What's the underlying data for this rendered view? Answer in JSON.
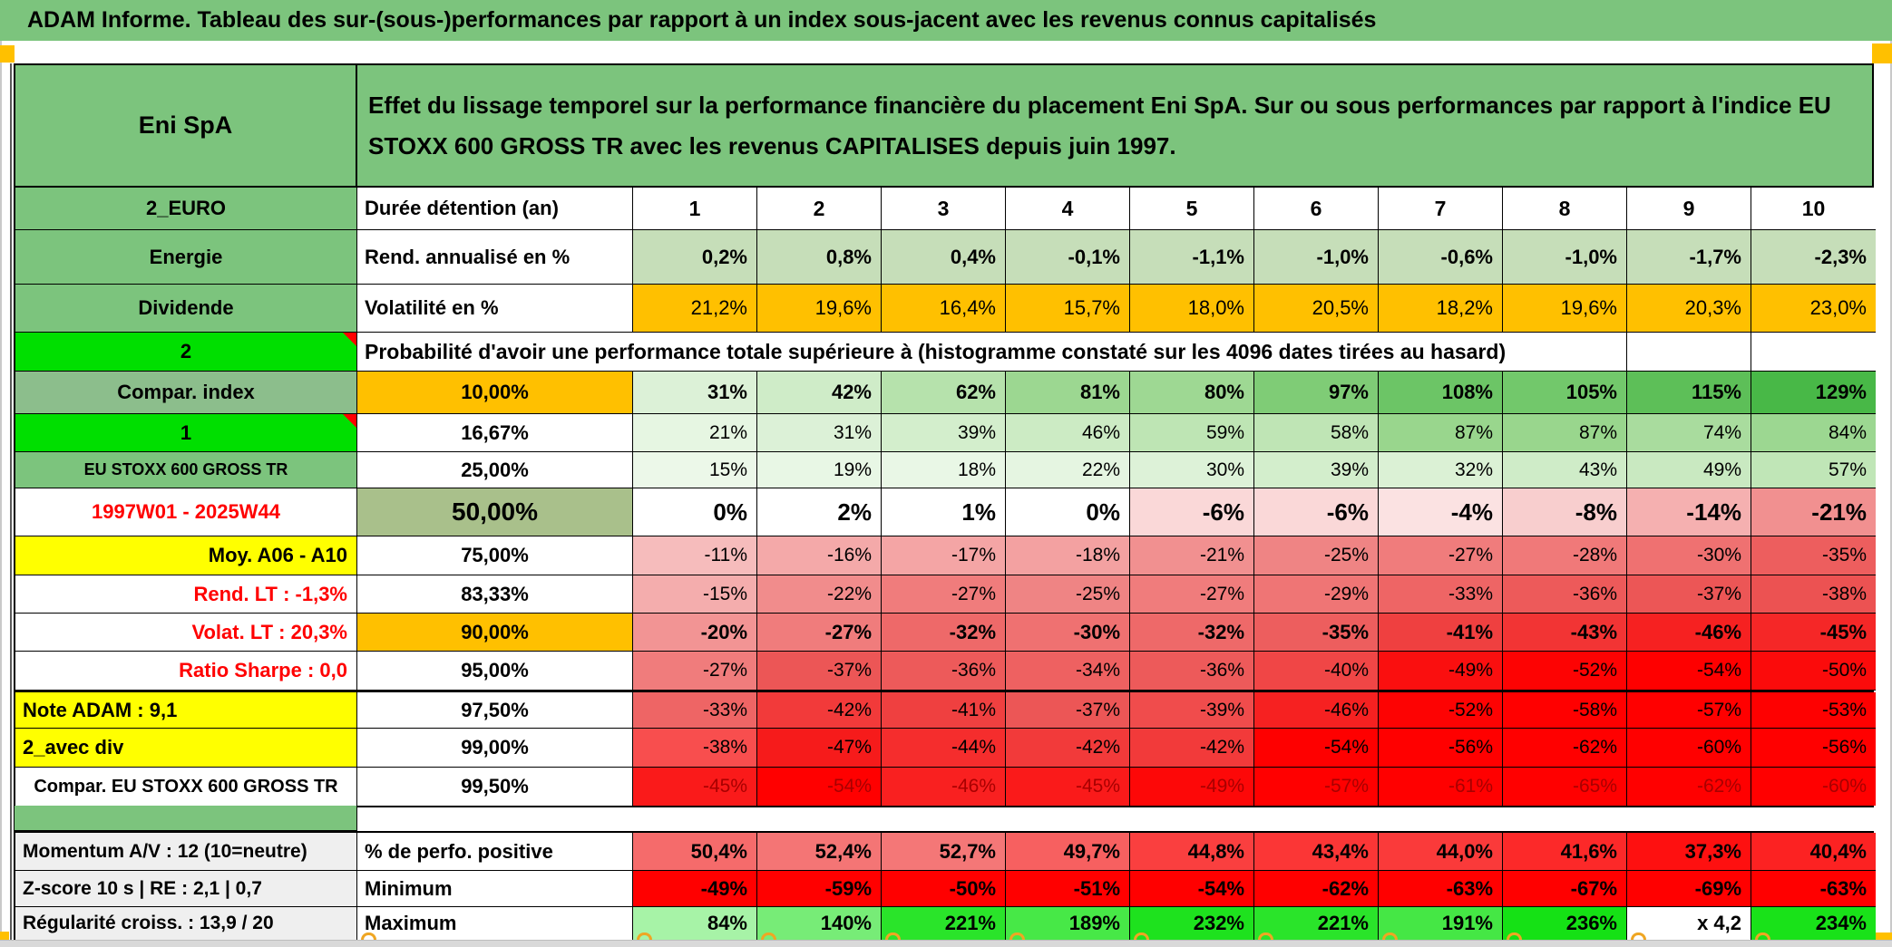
{
  "title": "ADAM Informe. Tableau des sur-(sous-)performances par rapport à un index sous-jacent avec les revenus connus capitalisés",
  "header": {
    "instrument": "Eni SpA",
    "description": "Effet du lissage temporel sur la performance financière du placement Eni SpA. Sur ou sous performances par rapport à l'indice EU STOXX 600 GROSS TR avec les revenus CAPITALISES depuis juin 1997."
  },
  "colors": {
    "sheet_green": "#7CC47D",
    "bright_green": "#00DF00",
    "muted_green": "#8CBE8C",
    "olive_green": "#A9C08B",
    "rend_green": "#C6DEB9",
    "orange": "#FFC000",
    "yellow": "#FFFF00",
    "label_gray": "#EFEFEF",
    "red_text": "#FF0000",
    "corner_marker": "#FFC000"
  },
  "table": {
    "main_rows": [
      {
        "name": "duree-detention",
        "label": {
          "text": "2_EURO",
          "bg": "#7CC47D"
        },
        "desc": {
          "text": "Durée détention (an)",
          "align": "left"
        },
        "values": [
          "1",
          "2",
          "3",
          "4",
          "5",
          "6",
          "7",
          "8",
          "9",
          "10"
        ],
        "vBold": true,
        "vAlign": "center",
        "vSize": 23,
        "vBgs": [
          "#FFFFFF",
          "#FFFFFF",
          "#FFFFFF",
          "#FFFFFF",
          "#FFFFFF",
          "#FFFFFF",
          "#FFFFFF",
          "#FFFFFF",
          "#FFFFFF",
          "#FFFFFF"
        ]
      },
      {
        "name": "rendement-annualise",
        "label": {
          "text": "Energie",
          "bg": "#7CC47D"
        },
        "desc": {
          "text": "Rend. annualisé en %",
          "align": "left"
        },
        "values": [
          "0,2%",
          "0,8%",
          "0,4%",
          "-0,1%",
          "-1,1%",
          "-1,0%",
          "-0,6%",
          "-1,0%",
          "-1,7%",
          "-2,3%"
        ],
        "vBold": true,
        "vSize": 22,
        "vBgs": [
          "#C6DEB9",
          "#C6DEB9",
          "#C6DEB9",
          "#C6DEB9",
          "#C6DEB9",
          "#C6DEB9",
          "#C6DEB9",
          "#C6DEB9",
          "#C6DEB9",
          "#C6DEB9"
        ]
      },
      {
        "name": "volatilite",
        "label": {
          "text": "Dividende",
          "bg": "#7CC47D"
        },
        "desc": {
          "text": "Volatilité en %",
          "align": "left"
        },
        "values": [
          "21,2%",
          "19,6%",
          "16,4%",
          "15,7%",
          "18,0%",
          "20,5%",
          "18,2%",
          "19,6%",
          "20,3%",
          "23,0%"
        ],
        "vBold": false,
        "vSize": 22,
        "vBgs": [
          "#FFC000",
          "#FFC000",
          "#FFC000",
          "#FFC000",
          "#FFC000",
          "#FFC000",
          "#FFC000",
          "#FFC000",
          "#FFC000",
          "#FFC000"
        ]
      },
      {
        "name": "probabilite-header",
        "label": {
          "text": "2",
          "bg": "#00DF00",
          "marker": true
        },
        "span": {
          "text": "Probabilité d'avoir une performance totale supérieure à (histogramme constaté sur les 4096 dates tirées au hasard)",
          "cols": 9
        },
        "tail": [
          "",
          ""
        ]
      },
      {
        "name": "p10",
        "label": {
          "text": "Compar. index",
          "bg": "#8CBE8C"
        },
        "desc": {
          "text": "10,00%",
          "bg": "#FFC000",
          "align": "center"
        },
        "values": [
          "31%",
          "42%",
          "62%",
          "81%",
          "80%",
          "97%",
          "108%",
          "105%",
          "115%",
          "129%"
        ],
        "vBold": true,
        "vSize": 22,
        "vBgs": [
          "#DCF1D7",
          "#CFECC8",
          "#B6E2AC",
          "#9CD791",
          "#9ED893",
          "#7FCC76",
          "#6CC566",
          "#72C86B",
          "#5DBF58",
          "#48B847"
        ]
      },
      {
        "name": "p1667",
        "label": {
          "text": "1",
          "bg": "#00DF00",
          "marker": true
        },
        "desc": {
          "text": "16,67%",
          "align": "center"
        },
        "values": [
          "21%",
          "31%",
          "39%",
          "46%",
          "59%",
          "58%",
          "87%",
          "87%",
          "74%",
          "84%"
        ],
        "vBold": false,
        "vBgs": [
          "#E6F6E2",
          "#DCF1D7",
          "#D3EECC",
          "#CCEBC4",
          "#BEE5B4",
          "#BFE5B5",
          "#99D68D",
          "#99D68D",
          "#A9DC9E",
          "#9CD791"
        ]
      },
      {
        "name": "p25",
        "label": {
          "text": "EU STOXX 600 GROSS TR",
          "bg": "#7CC47D",
          "size": 18
        },
        "desc": {
          "text": "25,00%",
          "align": "center"
        },
        "values": [
          "15%",
          "19%",
          "18%",
          "22%",
          "30%",
          "39%",
          "32%",
          "43%",
          "49%",
          "57%"
        ],
        "vBold": false,
        "vBgs": [
          "#ECF8E9",
          "#E8F7E5",
          "#E9F7E6",
          "#E5F5E1",
          "#DDF2D8",
          "#D3EECC",
          "#DBF1D5",
          "#CFECC8",
          "#C9E9C1",
          "#C0E6B7"
        ]
      },
      {
        "name": "p50",
        "label": {
          "text": "1997W01 - 2025W44",
          "color": "#FF0000"
        },
        "desc": {
          "text": "50,00%",
          "bg": "#A9C08B",
          "align": "center",
          "size": 28
        },
        "values": [
          "0%",
          "2%",
          "1%",
          "0%",
          "-6%",
          "-6%",
          "-4%",
          "-8%",
          "-14%",
          "-21%"
        ],
        "vBold": true,
        "vSize": 26,
        "vBgs": [
          "#FFFFFF",
          "#FFFFFF",
          "#FFFFFF",
          "#FFFFFF",
          "#FAD8D8",
          "#FAD8D8",
          "#FBE2E2",
          "#F8CECE",
          "#F5B0B0",
          "#F19090"
        ]
      },
      {
        "name": "p75",
        "label": {
          "text": "Moy. A06 - A10",
          "bg": "#FFFF00",
          "align": "right"
        },
        "desc": {
          "text": "75,00%",
          "align": "center"
        },
        "values": [
          "-11%",
          "-16%",
          "-17%",
          "-18%",
          "-21%",
          "-25%",
          "-27%",
          "-28%",
          "-30%",
          "-35%"
        ],
        "vBold": false,
        "vBgs": [
          "#F6BCBC",
          "#F4A9A9",
          "#F4A5A5",
          "#F3A1A1",
          "#F19090",
          "#EF8484",
          "#F07C7C",
          "#F07979",
          "#EF7171",
          "#ED5E5E"
        ]
      },
      {
        "name": "p8333",
        "label": {
          "text": "Rend. LT :   -1,3%",
          "color": "#FF0000",
          "align": "right"
        },
        "desc": {
          "text": "83,33%",
          "align": "center"
        },
        "values": [
          "-15%",
          "-22%",
          "-27%",
          "-25%",
          "-27%",
          "-29%",
          "-33%",
          "-36%",
          "-37%",
          "-38%"
        ],
        "vBold": false,
        "vBgs": [
          "#F4ADAD",
          "#F18C8C",
          "#F07C7C",
          "#EF8484",
          "#F07C7C",
          "#EF7575",
          "#EE6565",
          "#ED5A5A",
          "#EC5656",
          "#EC5252"
        ]
      },
      {
        "name": "p90",
        "label": {
          "text": "Volat. LT :   20,3%",
          "color": "#FF0000",
          "align": "right"
        },
        "desc": {
          "text": "90,00%",
          "bg": "#FFC000",
          "align": "center"
        },
        "values": [
          "-20%",
          "-27%",
          "-32%",
          "-30%",
          "-32%",
          "-35%",
          "-41%",
          "-43%",
          "-46%",
          "-45%"
        ],
        "vBold": true,
        "vSize": 22,
        "vBgs": [
          "#F29494",
          "#F07C7C",
          "#EE6969",
          "#EF7171",
          "#EE6969",
          "#ED5E5E",
          "#EF4040",
          "#F23434",
          "#F62121",
          "#F52727"
        ]
      },
      {
        "name": "p95",
        "label": {
          "text": "Ratio Sharpe :   0,0",
          "color": "#FF0000",
          "align": "right"
        },
        "desc": {
          "text": "95,00%",
          "align": "center"
        },
        "values": [
          "-27%",
          "-37%",
          "-36%",
          "-34%",
          "-36%",
          "-40%",
          "-49%",
          "-52%",
          "-54%",
          "-50%"
        ],
        "vBold": false,
        "vBgs": [
          "#F07C7C",
          "#EC5656",
          "#ED5A5A",
          "#EE6161",
          "#ED5A5A",
          "#F04646",
          "#FA0F0F",
          "#FD0303",
          "#FE0000",
          "#FB0B0B"
        ]
      },
      {
        "name": "p975",
        "label": {
          "text": "Note ADAM : 9,1",
          "bg": "#FFFF00",
          "align": "left"
        },
        "desc": {
          "text": "97,50%",
          "align": "center"
        },
        "values": [
          "-33%",
          "-42%",
          "-41%",
          "-37%",
          "-39%",
          "-46%",
          "-52%",
          "-58%",
          "-57%",
          "-53%"
        ],
        "vBold": false,
        "topBorder": true,
        "vBgs": [
          "#EE6565",
          "#F23A3A",
          "#EF4040",
          "#EC5656",
          "#F04C4C",
          "#F62121",
          "#FD0303",
          "#FF0000",
          "#FF0000",
          "#FE0101"
        ]
      },
      {
        "name": "p99",
        "label": {
          "text": "2_avec div",
          "bg": "#FFFF00",
          "align": "left"
        },
        "desc": {
          "text": "99,00%",
          "align": "center"
        },
        "values": [
          "-38%",
          "-47%",
          "-44%",
          "-42%",
          "-42%",
          "-54%",
          "-56%",
          "-62%",
          "-60%",
          "-56%"
        ],
        "vBold": false,
        "vBgs": [
          "#F84E4E",
          "#F61B1B",
          "#F52D2D",
          "#F23A3A",
          "#F23A3A",
          "#FE0000",
          "#FF0000",
          "#FF0000",
          "#FF0000",
          "#FF0000"
        ]
      },
      {
        "name": "p995",
        "label": {
          "text": "Compar. EU STOXX 600 GROSS TR",
          "size": 20
        },
        "desc": {
          "text": "99,50%",
          "align": "center"
        },
        "values": [
          "-45%",
          "-54%",
          "-46%",
          "-45%",
          "-49%",
          "-57%",
          "-61%",
          "-65%",
          "-62%",
          "-60%"
        ],
        "vBold": false,
        "vColor": "#A80000",
        "vBgs": [
          "#FA1A1A",
          "#FF0000",
          "#F92020",
          "#FA1A1A",
          "#FD0808",
          "#FF0000",
          "#FF0000",
          "#FF0000",
          "#FF0000",
          "#FF0000"
        ]
      }
    ],
    "stats_rows": [
      {
        "name": "perf-positive",
        "label": {
          "text": "Momentum A/V : 12 (10=neutre)",
          "bg": "#EFEFEF",
          "align": "left",
          "size": 21
        },
        "desc": {
          "text": "% de perfo. positive",
          "align": "left"
        },
        "values": [
          "50,4%",
          "52,4%",
          "52,7%",
          "49,7%",
          "44,8%",
          "43,4%",
          "44,0%",
          "41,6%",
          "37,3%",
          "40,4%"
        ],
        "vBold": true,
        "vSize": 22,
        "vBgs": [
          "#F56B6B",
          "#F47575",
          "#F47777",
          "#F76060",
          "#FA3F3F",
          "#FB3636",
          "#FA3A3A",
          "#FC2929",
          "#FE1010",
          "#FC2222"
        ]
      },
      {
        "name": "minimum",
        "label": {
          "text": "Z-score 10 s | RE : 2,1 | 0,7",
          "bg": "#EFEFEF",
          "align": "left",
          "size": 21
        },
        "desc": {
          "text": "Minimum",
          "align": "left"
        },
        "values": [
          "-49%",
          "-59%",
          "-50%",
          "-51%",
          "-54%",
          "-62%",
          "-63%",
          "-67%",
          "-69%",
          "-63%"
        ],
        "vBold": true,
        "vSize": 22,
        "vBgs": [
          "#FF0000",
          "#FF0000",
          "#FF0000",
          "#FF0000",
          "#FF0000",
          "#FF0000",
          "#FF0000",
          "#FF0000",
          "#FF0000",
          "#FF0000"
        ]
      },
      {
        "name": "maximum",
        "label": {
          "text": "Régularité croiss. : 13,9 / 20",
          "bg": "#EFEFEF",
          "align": "left",
          "size": 21
        },
        "desc": {
          "text": "Maximum",
          "align": "left"
        },
        "values": [
          "84%",
          "140%",
          "221%",
          "189%",
          "232%",
          "221%",
          "191%",
          "236%",
          "x 4,2",
          "234%"
        ],
        "vBold": true,
        "vSize": 22,
        "vBgs": [
          "#A7F3A7",
          "#77EC77",
          "#2AE42A",
          "#47E847",
          "#1EE21E",
          "#2AE42A",
          "#45E745",
          "#15E115",
          "#FFFFFF",
          "#19E219"
        ]
      }
    ]
  }
}
